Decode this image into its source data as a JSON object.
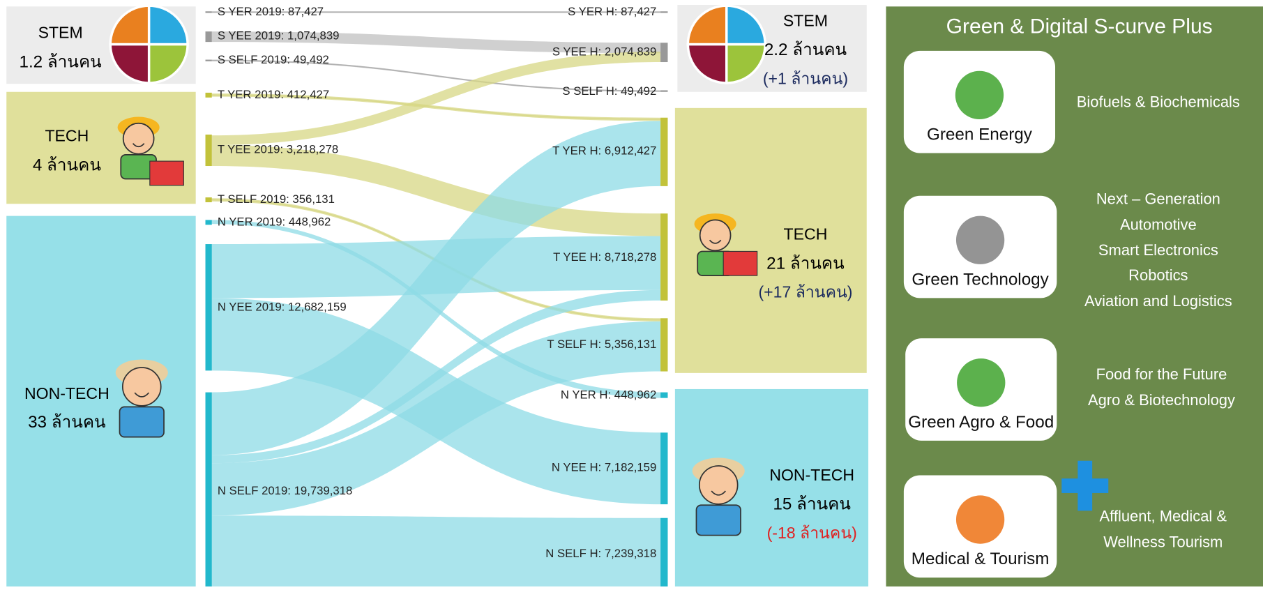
{
  "left_panels": [
    {
      "title": "STEM",
      "count": "1.2 ล้านคน"
    },
    {
      "title": "TECH",
      "count": "4 ล้านคน"
    },
    {
      "title": "NON-TECH",
      "count": "33 ล้านคน"
    }
  ],
  "right_panels": [
    {
      "title": "STEM",
      "count": "2.2 ล้านคน",
      "change": "(+1 ล้านคน)"
    },
    {
      "title": "TECH",
      "count": "21 ล้านคน",
      "change": "(+17 ล้านคน)"
    },
    {
      "title": "NON-TECH",
      "count": "15 ล้านคน",
      "change": "(-18 ล้านคน)"
    }
  ],
  "sankey": {
    "left_nodes": [
      "S YER 2019: 87,427",
      "S YEE 2019: 1,074,839",
      "S SELF 2019: 49,492",
      "T YER 2019: 412,427",
      "T YEE 2019: 3,218,278",
      "T SELF 2019: 356,131",
      "N YER 2019: 448,962",
      "N YEE 2019: 12,682,159",
      "N SELF 2019: 19,739,318"
    ],
    "right_nodes": [
      "S YER H: 87,427",
      "S YEE H: 2,074,839",
      "S SELF H: 49,492",
      "T YER H: 6,912,427",
      "T YEE H: 8,718,278",
      "T SELF H: 5,356,131",
      "N YER H: 448,962",
      "N YEE H: 7,182,159",
      "N SELF H: 7,239,318"
    ]
  },
  "sidebar": {
    "title": "Green & Digital S-curve Plus",
    "sectors": [
      {
        "card": "Green Energy",
        "industries": [
          "Biofuels & Biochemicals"
        ]
      },
      {
        "card": "Green Technology",
        "industries": [
          "Next – Generation",
          "Automotive",
          "Smart Electronics",
          "Robotics",
          "Aviation and Logistics"
        ]
      },
      {
        "card": "Green Agro & Food",
        "industries": [
          "Food for the Future",
          "Agro & Biotechnology"
        ]
      },
      {
        "card": "Medical & Tourism",
        "industries": [
          "Affluent, Medical &",
          "Wellness Tourism"
        ]
      }
    ]
  }
}
